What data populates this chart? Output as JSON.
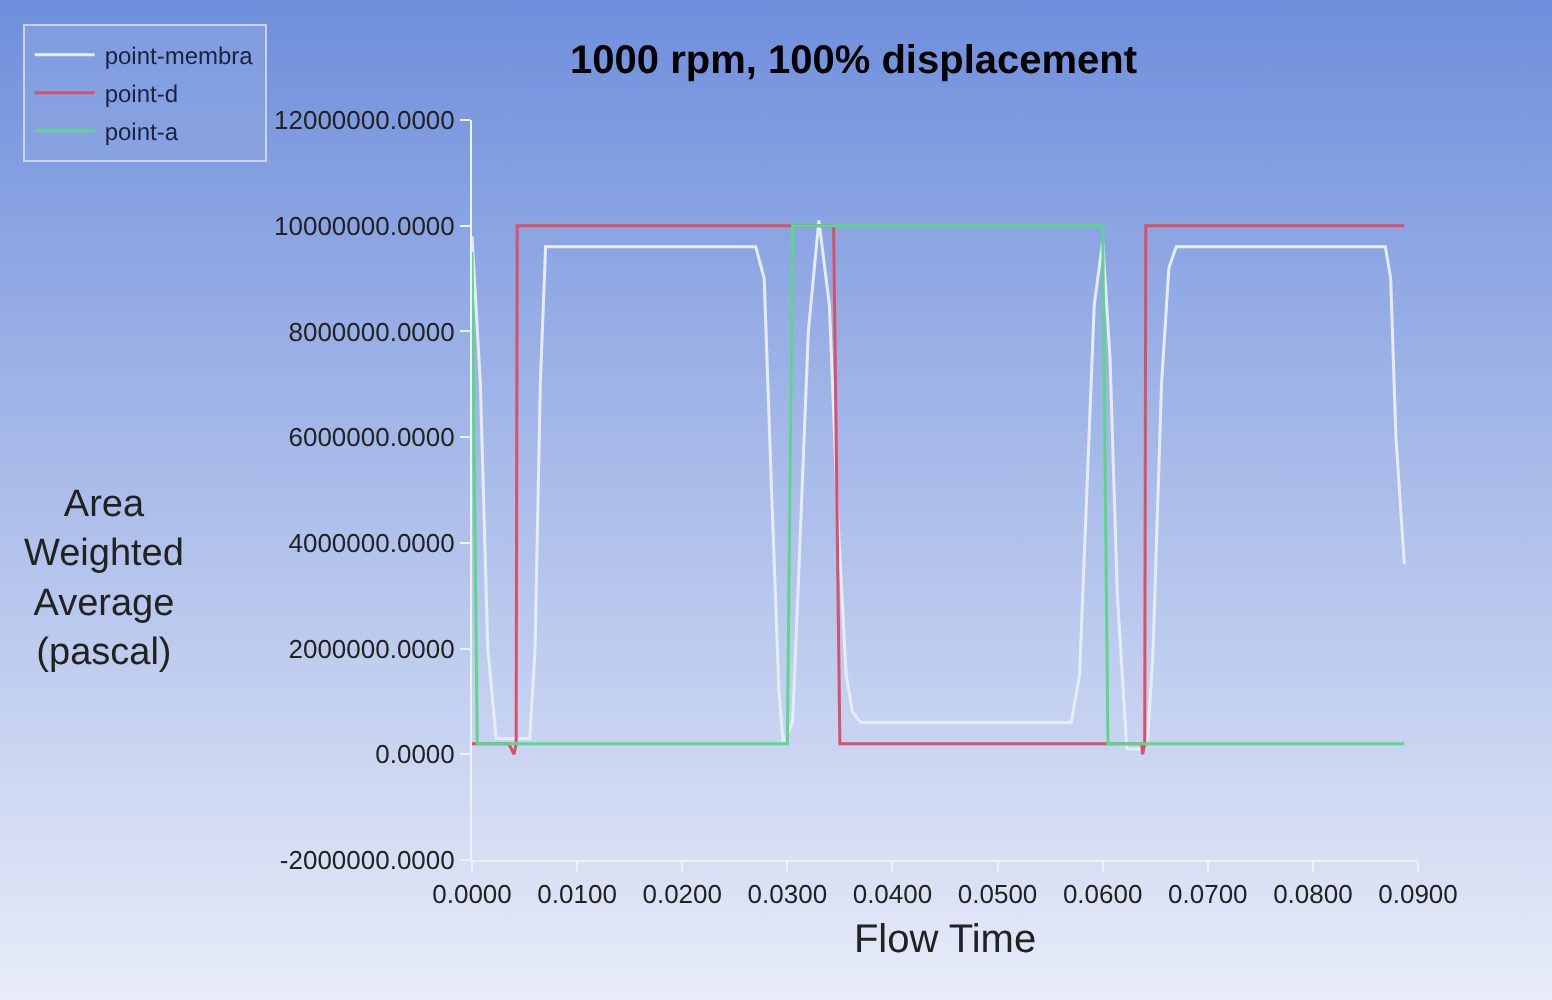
{
  "chart_data": {
    "type": "line",
    "title": "1000 rpm, 100% displacement",
    "xlabel": "Flow Time",
    "ylabel": "Area Weighted Average (pascal)",
    "xlim": [
      0,
      0.09
    ],
    "xticks": [
      {
        "value": 0,
        "label": "0.0000"
      },
      {
        "value": 0.01,
        "label": "0.0100"
      },
      {
        "value": 0.02,
        "label": "0.0200"
      },
      {
        "value": 0.03,
        "label": "0.0300"
      },
      {
        "value": 0.04,
        "label": "0.0400"
      },
      {
        "value": 0.05,
        "label": "0.0500"
      },
      {
        "value": 0.06,
        "label": "0.0600"
      },
      {
        "value": 0.07,
        "label": "0.0700"
      },
      {
        "value": 0.08,
        "label": "0.0800"
      },
      {
        "value": 0.09,
        "label": "0.0900"
      }
    ],
    "ylim": [
      -2000000,
      12000000
    ],
    "yticks": [
      {
        "value": -2000000,
        "label": "-2000000.0000"
      },
      {
        "value": 0,
        "label": "0.0000"
      },
      {
        "value": 2000000,
        "label": "2000000.0000"
      },
      {
        "value": 4000000,
        "label": "4000000.0000"
      },
      {
        "value": 6000000,
        "label": "6000000.0000"
      },
      {
        "value": 8000000,
        "label": "8000000.0000"
      },
      {
        "value": 10000000,
        "label": "10000000.0000"
      },
      {
        "value": 12000000,
        "label": "12000000.0000"
      }
    ],
    "grid": false,
    "legend": "top left",
    "marker": "none",
    "line_style": "solid",
    "series": [
      {
        "name": "point-membra",
        "color": "#e6ecf7",
        "x": [
          0,
          0.0008,
          0.0015,
          0.0023,
          0.004,
          0.0055,
          0.006,
          0.0065,
          0.007,
          0.027,
          0.0278,
          0.0285,
          0.0292,
          0.0296,
          0.0305,
          0.031,
          0.032,
          0.033,
          0.034,
          0.0348,
          0.0356,
          0.0362,
          0.037,
          0.057,
          0.0578,
          0.0585,
          0.0592,
          0.06,
          0.0607,
          0.0614,
          0.0623,
          0.0635,
          0.0643,
          0.0648,
          0.0656,
          0.0663,
          0.067,
          0.0869,
          0.0874,
          0.0879,
          0.0887
        ],
        "values": [
          9800000,
          7000000,
          2000000,
          300000,
          300000,
          300000,
          2000000,
          7000000,
          9600000,
          9600000,
          9000000,
          5000000,
          1200000,
          200000,
          600000,
          3000000,
          8000000,
          10100000,
          8500000,
          4500000,
          1500000,
          800000,
          600000,
          600000,
          1500000,
          5000000,
          8500000,
          9700000,
          7500000,
          3000000,
          100000,
          100000,
          300000,
          2000000,
          7000000,
          9200000,
          9600000,
          9600000,
          9000000,
          6000000,
          3600000
        ]
      },
      {
        "name": "point-d",
        "color": "#d9506a",
        "x": [
          0,
          0.0035,
          0.004,
          0.0042,
          0.0043,
          0.0344,
          0.035,
          0.0637,
          0.0638,
          0.064,
          0.0641,
          0.0887
        ],
        "values": [
          200000,
          200000,
          0,
          200000,
          10000000,
          10000000,
          200000,
          200000,
          0,
          200000,
          10000000,
          10000000
        ]
      },
      {
        "name": "point-a",
        "color": "#5ed68a",
        "x": [
          0,
          0.0005,
          0.001,
          0.03,
          0.0305,
          0.06,
          0.0605,
          0.0887
        ],
        "values": [
          9500000,
          200000,
          200000,
          200000,
          10000000,
          10000000,
          200000,
          200000
        ]
      }
    ]
  }
}
